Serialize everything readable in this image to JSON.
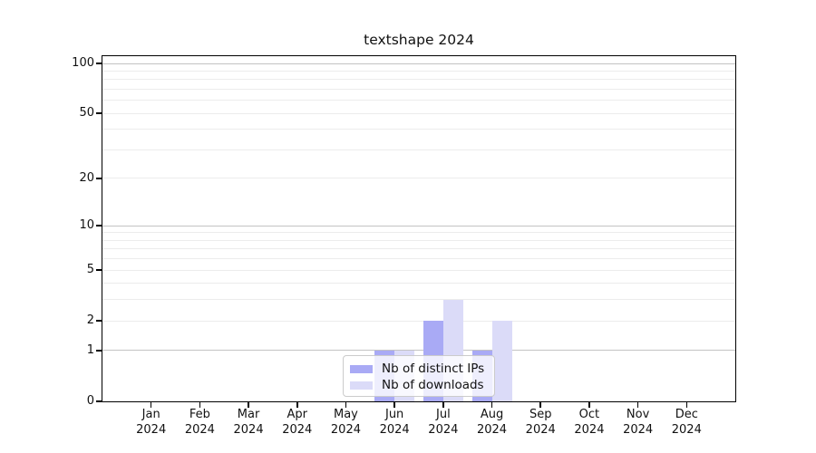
{
  "chart_data": {
    "type": "bar",
    "title": "textshape 2024",
    "categories": [
      "Jan",
      "Feb",
      "Mar",
      "Apr",
      "May",
      "Jun",
      "Jul",
      "Aug",
      "Sep",
      "Oct",
      "Nov",
      "Dec"
    ],
    "x_tick_labels": [
      {
        "month": "Jan",
        "year": "2024"
      },
      {
        "month": "Feb",
        "year": "2024"
      },
      {
        "month": "Mar",
        "year": "2024"
      },
      {
        "month": "Apr",
        "year": "2024"
      },
      {
        "month": "May",
        "year": "2024"
      },
      {
        "month": "Jun",
        "year": "2024"
      },
      {
        "month": "Jul",
        "year": "2024"
      },
      {
        "month": "Aug",
        "year": "2024"
      },
      {
        "month": "Sep",
        "year": "2024"
      },
      {
        "month": "Oct",
        "year": "2024"
      },
      {
        "month": "Nov",
        "year": "2024"
      },
      {
        "month": "Dec",
        "year": "2024"
      }
    ],
    "series": [
      {
        "name": "Nb of distinct IPs",
        "color": "#a9aaf5",
        "values": [
          0,
          0,
          0,
          0,
          0,
          1,
          2,
          1,
          0,
          0,
          0,
          0
        ]
      },
      {
        "name": "Nb of downloads",
        "color": "#dbdbf8",
        "values": [
          0,
          0,
          0,
          0,
          0,
          1,
          3,
          2,
          0,
          0,
          0,
          0
        ]
      }
    ],
    "y_axis": {
      "scale": "log1p",
      "ticks": [
        100,
        50,
        20,
        10,
        5,
        2,
        1,
        0
      ],
      "ylim": [
        0,
        110
      ]
    },
    "grid": {
      "major_values": [
        1,
        10,
        100
      ],
      "minor_values": [
        2,
        3,
        4,
        5,
        6,
        7,
        8,
        9,
        20,
        30,
        40,
        50,
        60,
        70,
        80,
        90
      ],
      "major_color": "#c3c3c3",
      "minor_color": "#ececec"
    },
    "legend": {
      "position": "lower center"
    },
    "colors": {
      "background": "#ffffff",
      "axis": "#000000",
      "text": "#111111"
    }
  }
}
